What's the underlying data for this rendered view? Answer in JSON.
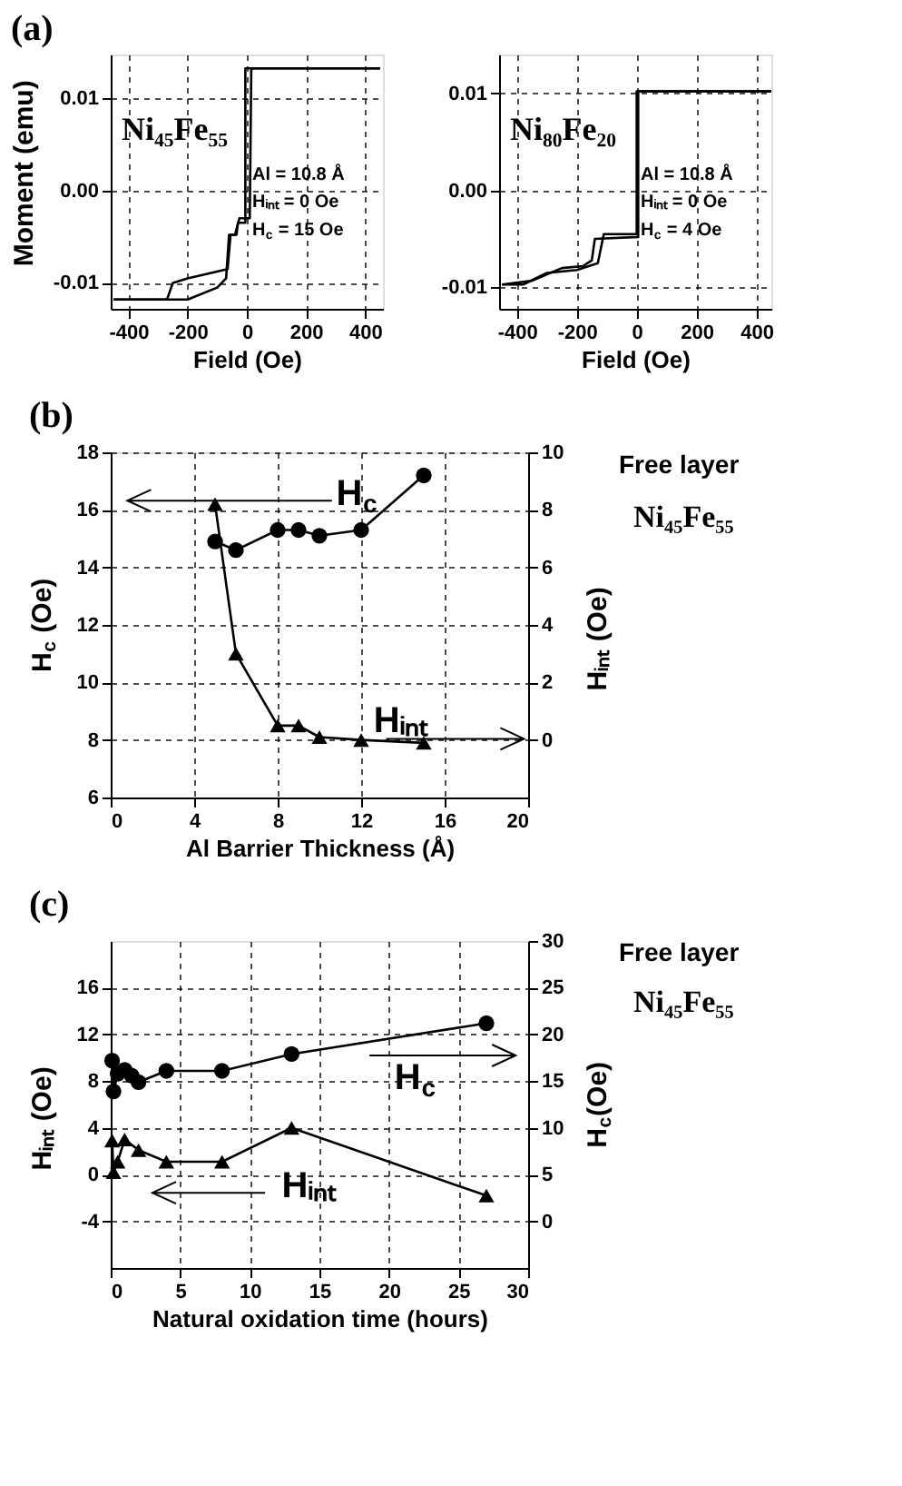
{
  "chart_data": [
    {
      "type": "line",
      "title": "(a)",
      "xlabel": "Field (Oe)",
      "ylabel": "Moment (emu)",
      "xlim": [
        -460,
        460
      ],
      "ylim": [
        -0.0128,
        0.0147
      ],
      "xticks": [
        -400,
        -200,
        0,
        200,
        400
      ],
      "yticks": [
        -0.01,
        {
          "value": 0,
          "label": "0.00"
        },
        0.01
      ],
      "grid": true,
      "marker": "none",
      "series": [
        {
          "color": "#000000",
          "x": [
            450,
            -5,
            -5,
            -30,
            -35,
            -55,
            -65,
            -200,
            -250,
            -270,
            -450
          ],
          "values": [
            0.0132,
            0.0132,
            -0.0035,
            -0.0035,
            -0.0048,
            -0.0048,
            -0.0085,
            -0.0095,
            -0.01,
            -0.0118,
            -0.0118
          ]
        },
        {
          "color": "#000000",
          "x": [
            -450,
            -200,
            -100,
            -70,
            -60,
            -40,
            -25,
            10,
            15,
            450
          ],
          "values": [
            -0.0118,
            -0.0118,
            -0.0105,
            -0.0095,
            -0.0048,
            -0.0048,
            -0.003,
            -0.003,
            0.0132,
            0.0132
          ]
        }
      ],
      "annotations": [
        "Ni₄₅Fe₅₅",
        "Al = 10.8 Å",
        "Hᵢₙₜ = 0  Oe",
        "H$_{c}$ = 15 Oe"
      ]
    },
    {
      "type": "line",
      "xlabel": "Field (Oe)",
      "xlim": [
        -460,
        450
      ],
      "ylim": [
        -0.0122,
        0.014
      ],
      "xticks": [
        -400,
        -200,
        0,
        200,
        400
      ],
      "yticks": [
        -0.01,
        {
          "value": 0,
          "label": "0.00"
        },
        0.01
      ],
      "grid": true,
      "marker": "none",
      "series": [
        {
          "color": "#000000",
          "x": [
            450,
            0,
            0,
            -110,
            -130,
            -200,
            -300,
            -380,
            -450
          ],
          "values": [
            0.0102,
            0.0102,
            -0.0045,
            -0.0045,
            -0.0075,
            -0.0082,
            -0.0085,
            -0.0097,
            -0.0097
          ]
        },
        {
          "color": "#000000",
          "x": [
            -450,
            -350,
            -250,
            -180,
            -150,
            -140,
            5,
            5,
            450
          ],
          "values": [
            -0.0097,
            -0.0093,
            -0.008,
            -0.0078,
            -0.0072,
            -0.005,
            -0.0048,
            0.0102,
            0.0102
          ]
        }
      ],
      "annotations": [
        "Ni₈₀Fe₂₀",
        "Al = 10.8 Å",
        "Hᵢₙₜ = 0  Oe",
        "H$_{c}$ = 4 Oe"
      ]
    },
    {
      "type": "line",
      "title": "(b)",
      "xlabel": "Al Barrier Thickness (Å)",
      "ylabel": "H$_{c}$ (Oe)",
      "y2label": "Hᵢₙₜ (Oe)",
      "xlim": [
        0,
        20
      ],
      "ylim": [
        6,
        18
      ],
      "y2lim": [
        -2,
        10
      ],
      "xticks": [
        0,
        4,
        8,
        12,
        16,
        20
      ],
      "yticks": [
        6,
        8,
        10,
        12,
        14,
        16,
        18
      ],
      "y2ticks": [
        0,
        2,
        4,
        6,
        8,
        10
      ],
      "grid": true,
      "series": [
        {
          "color": "#000000",
          "marker": "circle",
          "x": [
            5,
            6,
            8,
            9,
            10,
            12,
            15
          ],
          "values": [
            14.9,
            14.6,
            15.3,
            15.3,
            15.1,
            15.3,
            17.2
          ]
        },
        {
          "color": "#000000",
          "marker": "triangle",
          "axis": "y2",
          "x": [
            5,
            6,
            8,
            9,
            10,
            12,
            15
          ],
          "values": [
            8.2,
            3.0,
            0.5,
            0.5,
            0.1,
            0.0,
            -0.1
          ]
        }
      ],
      "annotations": [
        "H$_{c}$",
        "Hᵢₙₜ",
        "Free layer",
        "Ni₄₅Fe₅₅"
      ]
    },
    {
      "type": "line",
      "title": "(c)",
      "xlabel": "Natural oxidation time (hours)",
      "ylabel": "Hᵢₙₜ (Oe)",
      "y2label": "H$_{c}$(Oe)",
      "xlim": [
        0,
        30
      ],
      "ylim": [
        -8,
        20
      ],
      "y2lim": [
        -5,
        30
      ],
      "xticks": [
        0,
        5,
        10,
        15,
        20,
        25,
        30
      ],
      "yticks": [
        -4,
        0,
        4,
        8,
        12,
        16
      ],
      "y2ticks": [
        0,
        5,
        10,
        15,
        20,
        25,
        30
      ],
      "grid": true,
      "series": [
        {
          "color": "#000000",
          "marker": "triangle",
          "x": [
            0.1,
            0.2,
            0.5,
            1,
            2,
            4,
            8,
            13,
            27
          ],
          "values": [
            2.9,
            0.2,
            1.1,
            3.0,
            2.1,
            1.1,
            1.1,
            4.0,
            -1.8
          ]
        },
        {
          "color": "#000000",
          "marker": "circle",
          "axis": "y2",
          "x": [
            0.1,
            0.2,
            0.5,
            1,
            1.5,
            2,
            4,
            8,
            13,
            27
          ],
          "values": [
            17.2,
            13.9,
            15.8,
            16.2,
            15.6,
            14.9,
            16.1,
            16.1,
            17.9,
            21.2
          ]
        }
      ],
      "annotations": [
        "Hᵢₙₜ",
        "H$_{c}$",
        "Free layer",
        "Ni₄₅Fe₅₅"
      ]
    }
  ]
}
